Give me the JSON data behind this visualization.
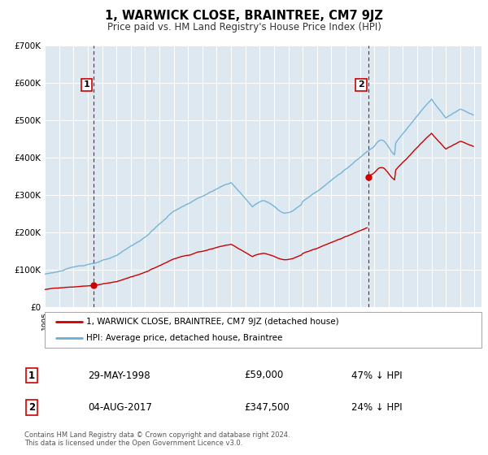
{
  "title": "1, WARWICK CLOSE, BRAINTREE, CM7 9JZ",
  "subtitle": "Price paid vs. HM Land Registry's House Price Index (HPI)",
  "xlim": [
    1995.0,
    2025.5
  ],
  "ylim": [
    0,
    700000
  ],
  "yticks": [
    0,
    100000,
    200000,
    300000,
    400000,
    500000,
    600000,
    700000
  ],
  "sale1_x": 1998.41,
  "sale1_y": 59000,
  "sale2_x": 2017.58,
  "sale2_y": 347500,
  "property_color": "#cc0000",
  "hpi_color": "#6baed6",
  "plot_bg_color": "#dde8f0",
  "legend1": "1, WARWICK CLOSE, BRAINTREE, CM7 9JZ (detached house)",
  "legend2": "HPI: Average price, detached house, Braintree",
  "sale1_date": "29-MAY-1998",
  "sale1_price": "£59,000",
  "sale1_hpi": "47% ↓ HPI",
  "sale2_date": "04-AUG-2017",
  "sale2_price": "£347,500",
  "sale2_hpi": "24% ↓ HPI",
  "footer1": "Contains HM Land Registry data © Crown copyright and database right 2024.",
  "footer2": "This data is licensed under the Open Government Licence v3.0."
}
